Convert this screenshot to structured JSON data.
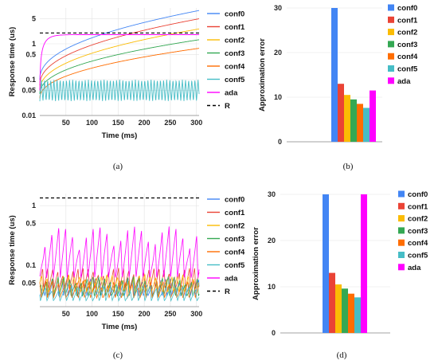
{
  "chart_data": [
    {
      "panel": "a",
      "caption": "(a)",
      "type": "line",
      "xlabel": "Time (ms)",
      "ylabel": "Response time (us)",
      "xlim": [
        0,
        305
      ],
      "ylim": [
        0.01,
        10
      ],
      "yscale": "log",
      "xticks": [
        "50",
        "100",
        "150",
        "200",
        "250",
        "300"
      ],
      "yticks": [
        "0.01",
        "0.05",
        "0.1",
        "0.5",
        "1",
        "5"
      ],
      "grid": true,
      "legend_position": "right",
      "reference": {
        "name": "R",
        "value": 2.0
      },
      "series": [
        {
          "name": "conf0",
          "color": "#4285f4",
          "start": 0.1,
          "end": 8.5,
          "k": 0.025
        },
        {
          "name": "conf1",
          "color": "#ea4335",
          "start": 0.07,
          "end": 5.0,
          "k": 0.018
        },
        {
          "name": "conf2",
          "color": "#fbbc04",
          "start": 0.05,
          "end": 2.6,
          "k": 0.015
        },
        {
          "name": "conf3",
          "color": "#34a853",
          "start": 0.04,
          "end": 1.3,
          "k": 0.012
        },
        {
          "name": "conf4",
          "color": "#ff6d01",
          "start": 0.03,
          "end": 0.75,
          "k": 0.011
        },
        {
          "name": "conf5",
          "color": "#46bdc6",
          "start": 0.025,
          "end": 0.1,
          "k": 0.0,
          "oscillating": true
        },
        {
          "name": "ada",
          "color": "#ff00ff",
          "start": 0.05,
          "end": 1.8,
          "k": 0.09
        }
      ]
    },
    {
      "panel": "b",
      "caption": "(b)",
      "type": "bar",
      "ylabel": "Approximation error",
      "ylim": [
        0,
        30
      ],
      "yticks": [
        "0",
        "10",
        "20",
        "30"
      ],
      "grid": true,
      "legend_position": "right",
      "series": [
        {
          "name": "conf0",
          "color": "#4285f4",
          "value": 30
        },
        {
          "name": "conf1",
          "color": "#ea4335",
          "value": 13
        },
        {
          "name": "conf2",
          "color": "#fbbc04",
          "value": 10.5
        },
        {
          "name": "conf3",
          "color": "#34a853",
          "value": 9.5
        },
        {
          "name": "conf4",
          "color": "#ff6d01",
          "value": 8.5
        },
        {
          "name": "conf5",
          "color": "#46bdc6",
          "value": 7.6
        },
        {
          "name": "ada",
          "color": "#ff00ff",
          "value": 11.5
        }
      ]
    },
    {
      "panel": "c",
      "caption": "(c)",
      "type": "line",
      "xlabel": "Time (ms)",
      "ylabel": "Response time (us)",
      "xlim": [
        0,
        305
      ],
      "ylim": [
        0.02,
        1.6
      ],
      "yscale": "log",
      "xticks": [
        "50",
        "100",
        "150",
        "200",
        "250",
        "300"
      ],
      "yticks": [
        "0.05",
        "0.1",
        "0.5",
        "1"
      ],
      "grid": true,
      "legend_position": "right",
      "reference": {
        "name": "R",
        "value": 1.35
      },
      "series": [
        {
          "name": "conf0",
          "color": "#4285f4",
          "base": 0.03,
          "peak": 0.06
        },
        {
          "name": "conf1",
          "color": "#ea4335",
          "base": 0.04,
          "peak": 0.09
        },
        {
          "name": "conf2",
          "color": "#fbbc04",
          "base": 0.035,
          "peak": 0.07
        },
        {
          "name": "conf3",
          "color": "#34a853",
          "base": 0.03,
          "peak": 0.065
        },
        {
          "name": "conf4",
          "color": "#ff6d01",
          "base": 0.028,
          "peak": 0.055
        },
        {
          "name": "conf5",
          "color": "#46bdc6",
          "base": 0.025,
          "peak": 0.045
        },
        {
          "name": "ada",
          "color": "#ff00ff",
          "base": 0.06,
          "peak": 0.45
        }
      ]
    },
    {
      "panel": "d",
      "caption": "(d)",
      "type": "bar",
      "ylabel": "Approximation error",
      "ylim": [
        0,
        30
      ],
      "yticks": [
        "0",
        "10",
        "20",
        "30"
      ],
      "grid": true,
      "legend_position": "right",
      "series": [
        {
          "name": "conf0",
          "color": "#4285f4",
          "value": 30
        },
        {
          "name": "conf1",
          "color": "#ea4335",
          "value": 13
        },
        {
          "name": "conf2",
          "color": "#fbbc04",
          "value": 10.5
        },
        {
          "name": "conf3",
          "color": "#34a853",
          "value": 9.6
        },
        {
          "name": "conf4",
          "color": "#ff6d01",
          "value": 8.5
        },
        {
          "name": "conf5",
          "color": "#46bdc6",
          "value": 7.7
        },
        {
          "name": "ada",
          "color": "#ff00ff",
          "value": 30
        }
      ]
    }
  ]
}
